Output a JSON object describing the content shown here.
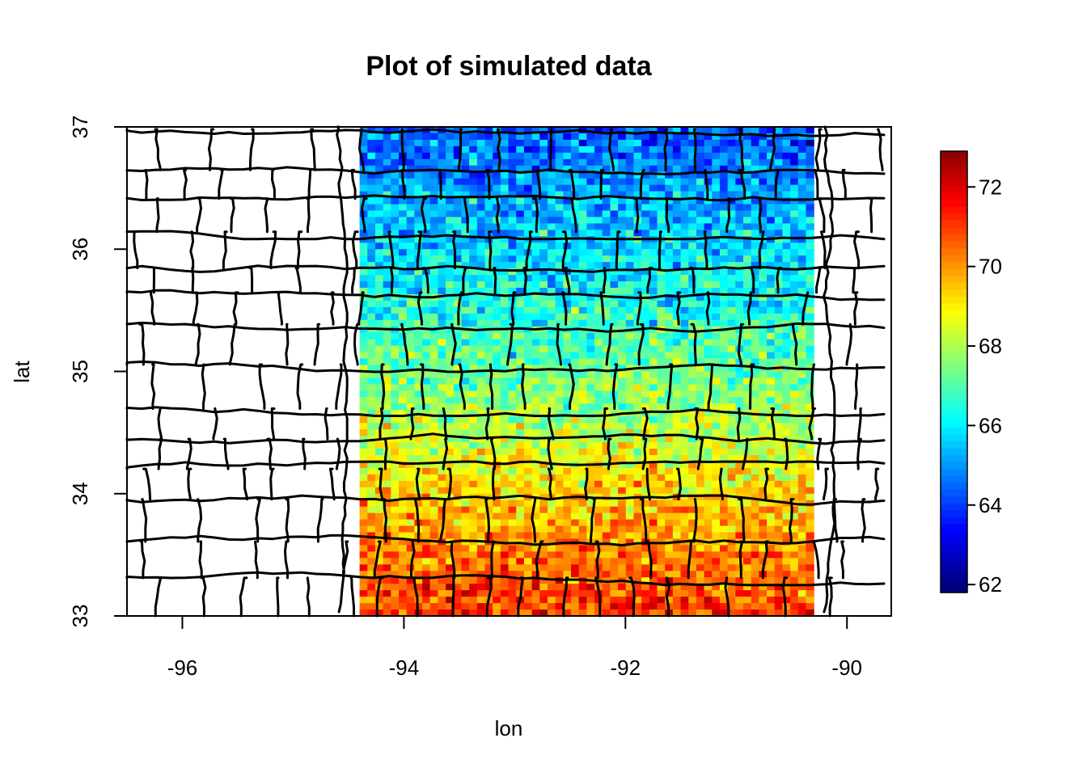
{
  "chart_data": {
    "type": "heatmap",
    "title": "Plot of simulated data",
    "xlabel": "lon",
    "ylabel": "lat",
    "xlim": [
      -96.5,
      -89.6
    ],
    "ylim": [
      33,
      37
    ],
    "x_ticks": [
      "-96",
      "-94",
      "-92",
      "-90"
    ],
    "y_ticks": [
      "33",
      "34",
      "35",
      "36",
      "37"
    ],
    "grid": false,
    "legend": "right",
    "data_extent": {
      "lon": [
        -94.4,
        -90.3
      ],
      "lat": [
        33,
        37
      ]
    },
    "value_range": [
      62,
      73
    ],
    "colorbar": {
      "ticks": [
        "62",
        "64",
        "66",
        "68",
        "70",
        "72"
      ],
      "colors": [
        "#00007f",
        "#0000ff",
        "#007fff",
        "#00ffff",
        "#7fff7f",
        "#ffff00",
        "#ff7f00",
        "#ff0000",
        "#7f0000"
      ]
    },
    "trend": [
      {
        "lat": 37.0,
        "value": 64.3
      },
      {
        "lat": 36.5,
        "value": 65.0
      },
      {
        "lat": 36.0,
        "value": 65.8
      },
      {
        "lat": 35.5,
        "value": 66.5
      },
      {
        "lat": 35.0,
        "value": 67.3
      },
      {
        "lat": 34.5,
        "value": 68.2
      },
      {
        "lat": 34.0,
        "value": 69.3
      },
      {
        "lat": 33.5,
        "value": 70.3
      },
      {
        "lat": 33.0,
        "value": 71.2
      }
    ],
    "overlay": "county boundaries"
  }
}
